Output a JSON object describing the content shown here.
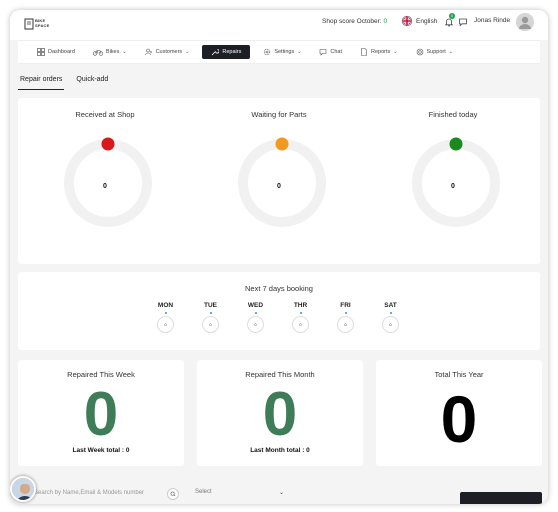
{
  "header": {
    "logo_text_line1": "BIKE",
    "logo_text_line2": "SPACE",
    "shop_score_label": "Shop score October:",
    "shop_score_value": "0",
    "language": "English",
    "notification_count": "0",
    "user_name": "Jonas Rinde"
  },
  "nav": {
    "items": [
      {
        "label": "Dashboard",
        "icon": "dashboard-icon"
      },
      {
        "label": "Bikes",
        "icon": "bike-icon",
        "chevron": "⌄"
      },
      {
        "label": "Customers",
        "icon": "customers-icon",
        "chevron": "⌄"
      },
      {
        "label": "Repairs",
        "icon": "wrench-icon",
        "active": true
      },
      {
        "label": "Settings",
        "icon": "gear-icon",
        "chevron": "⌄"
      },
      {
        "label": "Chat",
        "icon": "chat-icon"
      },
      {
        "label": "Reports",
        "icon": "report-icon",
        "chevron": "⌄"
      },
      {
        "label": "Support",
        "icon": "support-icon",
        "chevron": "⌄"
      }
    ]
  },
  "tabs": [
    {
      "label": "Repair orders",
      "active": true
    },
    {
      "label": "Quick-add",
      "active": false
    }
  ],
  "status_gauges": [
    {
      "title": "Received at Shop",
      "value": "0",
      "color": "#d7191c"
    },
    {
      "title": "Waiting for Parts",
      "value": "0",
      "color": "#f2991f"
    },
    {
      "title": "Finished today",
      "value": "0",
      "color": "#1a8a1e"
    }
  ],
  "booking": {
    "title": "Next 7 days booking",
    "days": [
      {
        "name": "MON",
        "count": "0"
      },
      {
        "name": "TUE",
        "count": "0"
      },
      {
        "name": "WED",
        "count": "0"
      },
      {
        "name": "THR",
        "count": "0"
      },
      {
        "name": "FRI",
        "count": "0"
      },
      {
        "name": "SAT",
        "count": "0"
      }
    ]
  },
  "stats": [
    {
      "title": "Repaired This Week",
      "value": "0",
      "footer": "Last Week total : 0",
      "color": "#3f7d59"
    },
    {
      "title": "Repaired This Month",
      "value": "0",
      "footer": "Last Month total : 0",
      "color": "#3f7d59"
    },
    {
      "title": "Total This Year",
      "value": "0",
      "footer": "",
      "color": "#000000"
    }
  ],
  "filters": {
    "search_placeholder": "Search by Name,Email & Models number",
    "select_placeholder": "Select",
    "select_chevron": "⌄"
  }
}
